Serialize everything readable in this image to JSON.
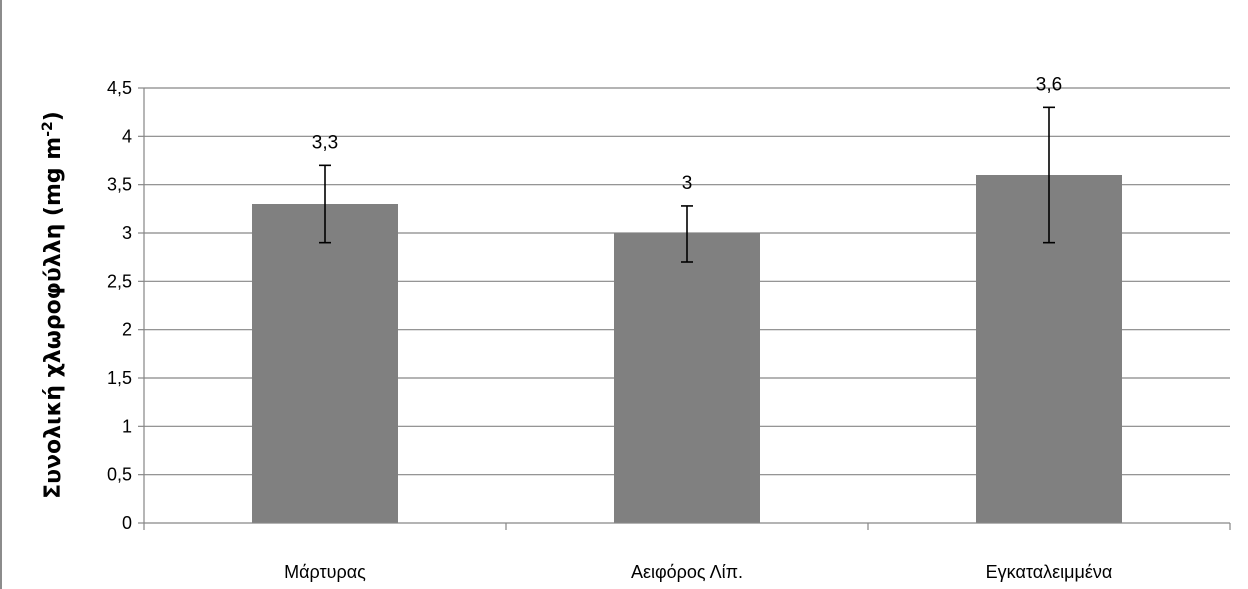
{
  "chart_data": {
    "type": "bar",
    "categories": [
      "Μάρτυρας",
      "Αειφόρος Λίπ.",
      "Εγκαταλειμμένα"
    ],
    "values": [
      3.3,
      3.0,
      3.6
    ],
    "data_labels": [
      "3,3",
      "3",
      "3,6"
    ],
    "error_low": [
      2.9,
      2.7,
      2.9
    ],
    "error_high": [
      3.7,
      3.28,
      4.3
    ],
    "ylim": [
      0,
      4.5
    ],
    "yticks": [
      0,
      0.5,
      1,
      1.5,
      2,
      2.5,
      3,
      3.5,
      4,
      4.5
    ],
    "ytick_labels": [
      "0",
      "0,5",
      "1",
      "1,5",
      "2",
      "2,5",
      "3",
      "3,5",
      "4",
      "4,5"
    ],
    "ylabel": "Συνολική χλωροφύλλη (mg m",
    "ylabel_sup": "-2",
    "ylabel_close": ")",
    "xlabel": "",
    "title": "",
    "grid": true,
    "legend": "none",
    "bar_color": "#808080",
    "grid_color": "#868686",
    "axis_color": "#868686",
    "error_color": "#000000"
  }
}
